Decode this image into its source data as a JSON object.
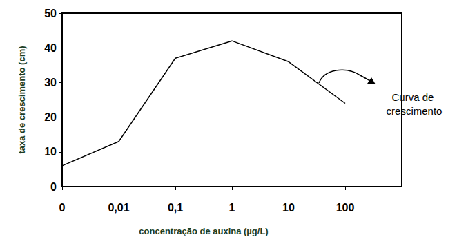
{
  "chart_data": {
    "type": "line",
    "x_label": "concentração de auxina (µg/L)",
    "y_label": "taxa de crescimento (cm)",
    "categories": [
      "0",
      "0,01",
      "0,1",
      "1",
      "10",
      "100"
    ],
    "values": [
      6,
      13,
      37,
      42,
      36,
      24
    ],
    "color": "#000000",
    "ylim": [
      0,
      50
    ],
    "yticks": [
      0,
      10,
      20,
      30,
      40,
      50
    ],
    "grid": false,
    "annotation": "Curva de crescimento"
  }
}
